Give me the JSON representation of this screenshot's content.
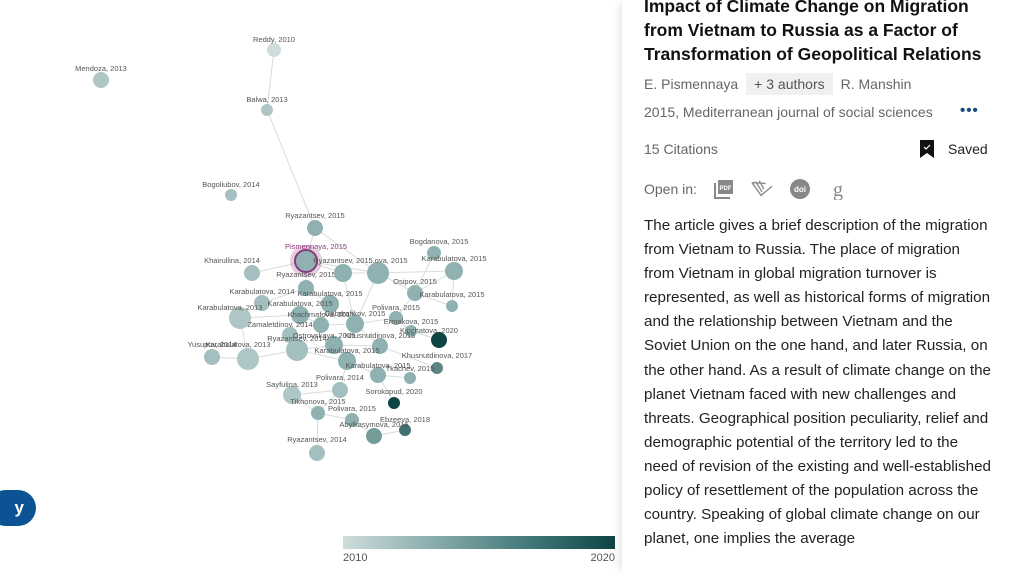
{
  "graph": {
    "legend": {
      "min_label": "2010",
      "max_label": "2020",
      "min_color": "#d0dcdc",
      "max_color": "#0e4444"
    },
    "fab_label": "y",
    "selected_color": "#8a3a7e",
    "nodes": [
      {
        "id": "reddy2010",
        "label": "Reddy, 2010",
        "year": 2010
      },
      {
        "id": "mendoza2013",
        "label": "Mendoza, 2013",
        "year": 2013
      },
      {
        "id": "balwa2013",
        "label": "Balwa, 2013",
        "year": 2013
      },
      {
        "id": "bogoliubov2014",
        "label": "Bogoliubov, 2014",
        "year": 2014
      },
      {
        "id": "ryazantsev2015a",
        "label": "Ryazantsev, 2015",
        "year": 2015
      },
      {
        "id": "pismennaya2015",
        "label": "Pismennaya, 2015",
        "year": 2015,
        "selected": true
      },
      {
        "id": "khairullina2014",
        "label": "Khairullina, 2014",
        "year": 2014
      },
      {
        "id": "ryazantsev2015b",
        "label": "Ryazantsev, 2015",
        "year": 2015
      },
      {
        "id": "ryazantsev2015c",
        "label": "Ryazantsev, 2015",
        "year": 2015
      },
      {
        "id": "ivanova2015",
        "label": "...ova, 2015",
        "year": 2015
      },
      {
        "id": "bogdanova2015",
        "label": "Bogdanova, 2015",
        "year": 2015
      },
      {
        "id": "karabulatova2015a",
        "label": "Karabulatova, 2015",
        "year": 2015
      },
      {
        "id": "osipov2015",
        "label": "Osipov, 2015",
        "year": 2015
      },
      {
        "id": "karabulatova2015b",
        "label": "Karabulatova, 2015",
        "year": 2015
      },
      {
        "id": "karabulatova2014",
        "label": "Karabulatova, 2014",
        "year": 2014
      },
      {
        "id": "karabulatova2015c",
        "label": "Karabulatova, 2015",
        "year": 2015
      },
      {
        "id": "karabulatova2013a",
        "label": "Karabulatova, 2013",
        "year": 2013
      },
      {
        "id": "karabulatova2015d",
        "label": "Karabulatova, 2015",
        "year": 2015
      },
      {
        "id": "khachmafova2015",
        "label": "Khachmafova, 2015",
        "year": 2015
      },
      {
        "id": "gabdrafikov2015",
        "label": "Gabdrafikov, 2015",
        "year": 2015
      },
      {
        "id": "polivara2015a",
        "label": "Polivara, 2015",
        "year": 2015
      },
      {
        "id": "zamaletdinov2014",
        "label": "Zamaletdinov, 2014",
        "year": 2014
      },
      {
        "id": "ermakova2015",
        "label": "Ermakova, 2015",
        "year": 2015
      },
      {
        "id": "kipchatova2020",
        "label": "Kipchatova, 2020",
        "year": 2020
      },
      {
        "id": "ostrovskaya2015",
        "label": "Ostrovskaya, 2015",
        "year": 2015
      },
      {
        "id": "khusnutdinova2015",
        "label": "Khusnutdinova, 2015",
        "year": 2015
      },
      {
        "id": "ryazantsev2014a",
        "label": "Ryazantsev, 2014",
        "year": 2014
      },
      {
        "id": "yusupov2014",
        "label": "Yusupov, 2014",
        "year": 2014
      },
      {
        "id": "karabulatova2013b",
        "label": "Karabulatova, 2013",
        "year": 2013
      },
      {
        "id": "karabulatova2015e",
        "label": "Karabulatova, 2015",
        "year": 2015
      },
      {
        "id": "khusnutdinova2017",
        "label": "Khusnutdinova, 2017",
        "year": 2017
      },
      {
        "id": "karabulatova2015f",
        "label": "Karabulatova, 2015",
        "year": 2015
      },
      {
        "id": "tkachev2015",
        "label": "Tkachev, 2015",
        "year": 2015
      },
      {
        "id": "sayfulina2013",
        "label": "Sayfulina, 2013",
        "year": 2013
      },
      {
        "id": "polivara2014",
        "label": "Polivara, 2014",
        "year": 2014
      },
      {
        "id": "sorokopud2020",
        "label": "Sorokopud, 2020",
        "year": 2020
      },
      {
        "id": "tikhonova2015",
        "label": "Tikhonova, 2015",
        "year": 2015
      },
      {
        "id": "polivara2015b",
        "label": "Polivara, 2015",
        "year": 2015
      },
      {
        "id": "ebzeeva2018",
        "label": "Ebzeeva, 2018",
        "year": 2018
      },
      {
        "id": "abylkasymova2016",
        "label": "Abylkasymova, 2016",
        "year": 2016
      },
      {
        "id": "ryazantsev2014b",
        "label": "Ryazantsev, 2014",
        "year": 2014
      }
    ]
  },
  "paper": {
    "title": "Impact of Climate Change on Migration from Vietnam to Russia as a Factor of Transformation of Geopolitical Relations",
    "first_author": "E. Pismennaya",
    "more_authors": "+ 3 authors",
    "last_author": "R. Manshin",
    "venue": "2015, Mediterranean journal of social sciences",
    "more_icon": "more-horizontal-icon",
    "citations": "15 Citations",
    "saved_label": "Saved",
    "open_in_label": "Open in:",
    "open_in_icons": [
      "pdf-icon",
      "semantic-scholar-icon",
      "doi-icon",
      "google-scholar-icon"
    ],
    "abstract": "The article gives a brief description of the migration from Vietnam to Russia. The place of migration from Vietnam in global migration turnover is represented, as well as historical forms of migration and the relationship between Vietnam and the Soviet Union on the one hand, and later Russia, on the other hand. As a result of climate change on the planet Vietnam faced with new challenges and threats. Geographical position peculiarity, relief and demographic potential of the territory led to the need of revision of the existing and well-established policy of resettlement of the population across the country. Speaking of global climate change on our planet, one implies the average"
  }
}
